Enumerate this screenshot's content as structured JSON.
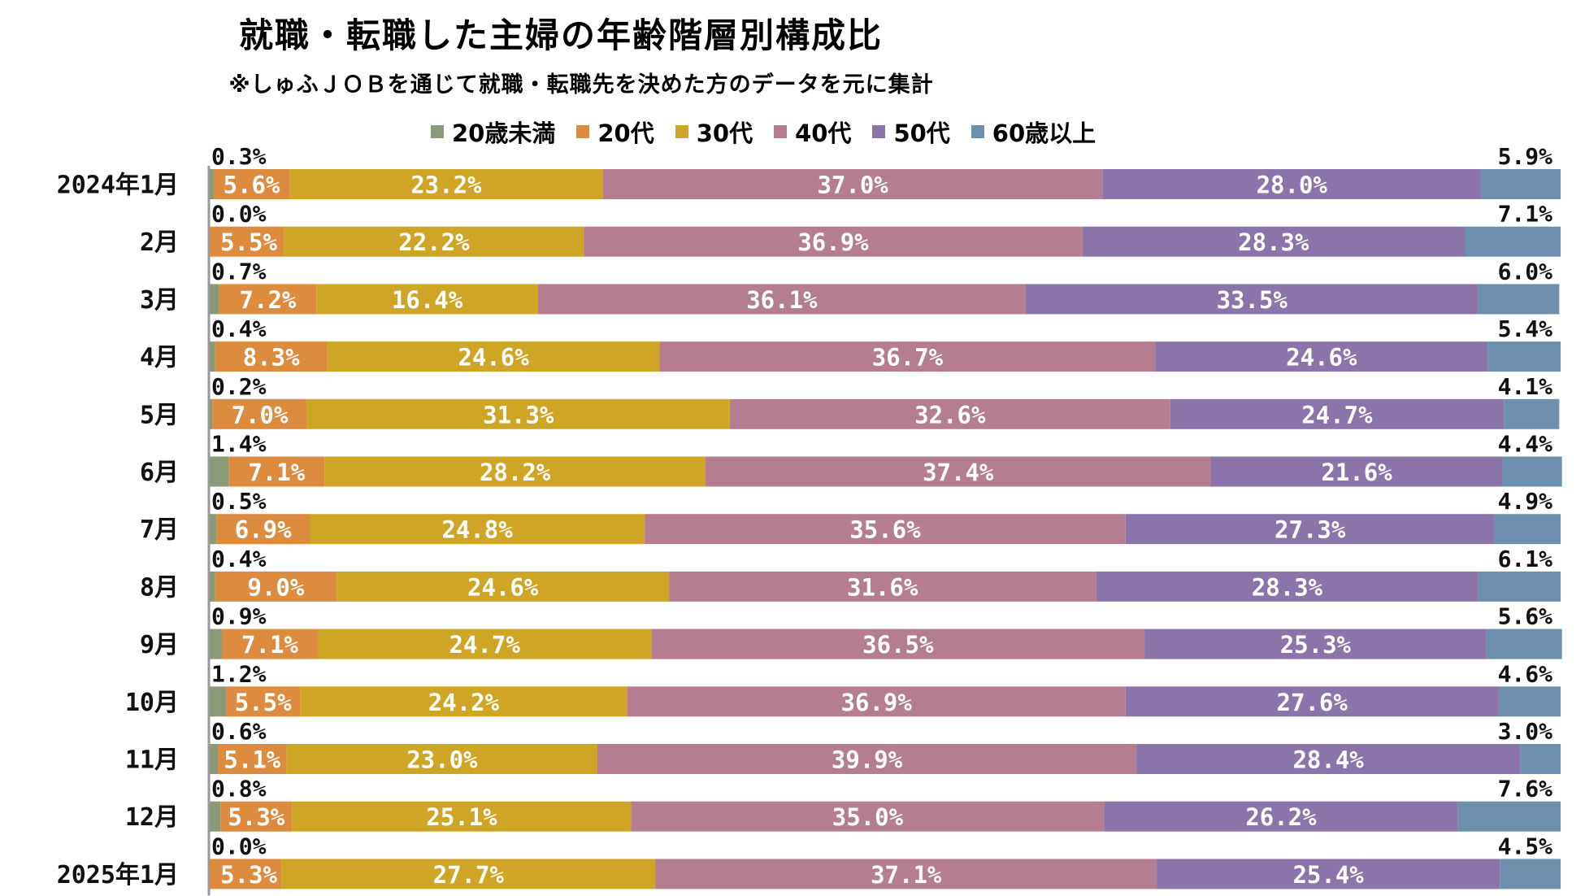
{
  "chart_data": {
    "type": "bar",
    "orientation": "horizontal",
    "stacked": "100%",
    "title": "就職・転職した主婦の年齢階層別構成比",
    "subtitle": "※しゅふＪＯＢを通じて就職・転職先を決めた方のデータを元に集計",
    "categories": [
      "2024年1月",
      "2月",
      "3月",
      "4月",
      "5月",
      "6月",
      "7月",
      "8月",
      "9月",
      "10月",
      "11月",
      "12月",
      "2025年1月"
    ],
    "xlim": [
      0,
      100
    ],
    "legend_position": "top",
    "grid": false,
    "series": [
      {
        "name": "20歳未満",
        "color": "#8a9a78",
        "values": [
          0.3,
          0.0,
          0.7,
          0.4,
          0.2,
          1.4,
          0.5,
          0.4,
          0.9,
          1.2,
          0.6,
          0.8,
          0.0
        ],
        "labels": [
          "0.3%",
          "0.0%",
          "0.7%",
          "0.4%",
          "0.2%",
          "1.4%",
          "0.5%",
          "0.4%",
          "0.9%",
          "1.2%",
          "0.6%",
          "0.8%",
          "0.0%"
        ]
      },
      {
        "name": "20代",
        "color": "#dd8b3f",
        "values": [
          5.6,
          5.5,
          7.2,
          8.3,
          7.0,
          7.1,
          6.9,
          9.0,
          7.1,
          5.5,
          5.1,
          5.3,
          5.3
        ],
        "labels": [
          "5.6%",
          "5.5%",
          "7.2%",
          "8.3%",
          "7.0%",
          "7.1%",
          "6.9%",
          "9.0%",
          "7.1%",
          "5.5%",
          "5.1%",
          "5.3%",
          "5.3%"
        ]
      },
      {
        "name": "30代",
        "color": "#cfa526",
        "values": [
          23.2,
          22.2,
          16.4,
          24.6,
          31.3,
          28.2,
          24.8,
          24.6,
          24.7,
          24.2,
          23.0,
          25.1,
          27.7
        ],
        "labels": [
          "23.2%",
          "22.2%",
          "16.4%",
          "24.6%",
          "31.3%",
          "28.2%",
          "24.8%",
          "24.6%",
          "24.7%",
          "24.2%",
          "23.0%",
          "25.1%",
          "27.7%"
        ]
      },
      {
        "name": "40代",
        "color": "#b57d90",
        "values": [
          37.0,
          36.9,
          36.1,
          36.7,
          32.6,
          37.4,
          35.6,
          31.6,
          36.5,
          36.9,
          39.9,
          35.0,
          37.1
        ],
        "labels": [
          "37.0%",
          "36.9%",
          "36.1%",
          "36.7%",
          "32.6%",
          "37.4%",
          "35.6%",
          "31.6%",
          "36.5%",
          "36.9%",
          "39.9%",
          "35.0%",
          "37.1%"
        ]
      },
      {
        "name": "50代",
        "color": "#8b74aa",
        "values": [
          28.0,
          28.3,
          33.5,
          24.6,
          24.7,
          21.6,
          27.3,
          28.3,
          25.3,
          27.6,
          28.4,
          26.2,
          25.4
        ],
        "labels": [
          "28.0%",
          "28.3%",
          "33.5%",
          "24.6%",
          "24.7%",
          "21.6%",
          "27.3%",
          "28.3%",
          "25.3%",
          "27.6%",
          "28.4%",
          "26.2%",
          "25.4%"
        ]
      },
      {
        "name": "60歳以上",
        "color": "#6d8fae",
        "values": [
          5.9,
          7.1,
          6.0,
          5.4,
          4.1,
          4.4,
          4.9,
          6.1,
          5.6,
          4.6,
          3.0,
          7.6,
          4.5
        ],
        "labels": [
          "5.9%",
          "7.1%",
          "6.0%",
          "5.4%",
          "4.1%",
          "4.4%",
          "4.9%",
          "6.1%",
          "5.6%",
          "4.6%",
          "3.0%",
          "7.6%",
          "4.5%"
        ]
      }
    ]
  }
}
